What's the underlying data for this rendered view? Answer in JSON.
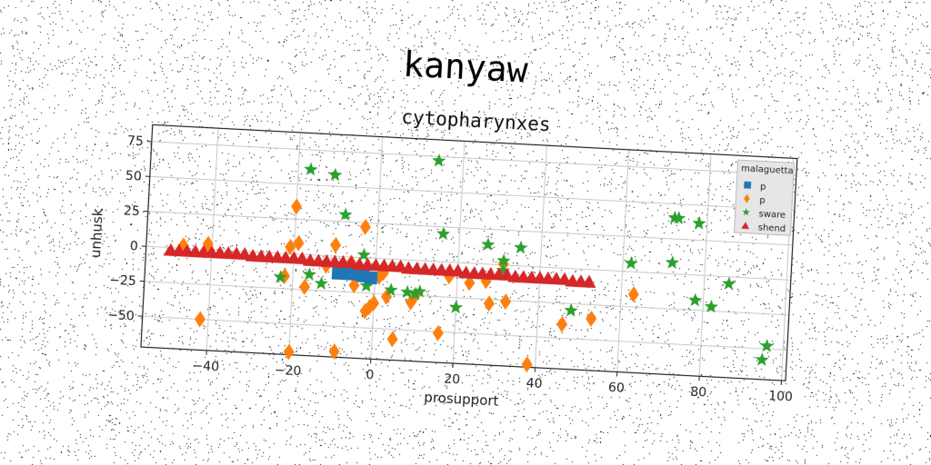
{
  "figure": {
    "title": "kanyaw"
  },
  "chart_data": {
    "type": "scatter",
    "title": "cytopharynxes",
    "xlabel": "prosupport",
    "ylabel": "unhusk",
    "xlim": [
      -56,
      101
    ],
    "ylim": [
      -72,
      87
    ],
    "x_ticks": [
      -40,
      -20,
      0,
      20,
      40,
      60,
      80,
      100
    ],
    "y_ticks": [
      -50,
      -25,
      0,
      25,
      50,
      75
    ],
    "x_tick_labels": [
      "−40",
      "−20",
      "0",
      "20",
      "40",
      "60",
      "80",
      "100"
    ],
    "y_tick_labels": [
      "−50",
      "−25",
      "0",
      "25",
      "50",
      "75"
    ],
    "grid": true,
    "legend": {
      "title": "malaguetta",
      "placement": "top-right"
    },
    "series": [
      {
        "name": "p",
        "marker": "square",
        "color": "#1f77b4",
        "points": [
          [
            -9,
            -12
          ],
          [
            -6,
            -12
          ],
          [
            -3,
            -13
          ],
          [
            -1,
            -14
          ]
        ]
      },
      {
        "name": "p",
        "marker": "diamond",
        "color": "#ff7f0e",
        "points": [
          [
            -47,
            2
          ],
          [
            -41,
            4
          ],
          [
            -42,
            -50
          ],
          [
            -22,
            -16
          ],
          [
            -21,
            5
          ],
          [
            -20,
            34
          ],
          [
            -19,
            8
          ],
          [
            -17,
            -23
          ],
          [
            -20,
            -70
          ],
          [
            -12,
            -7
          ],
          [
            -10,
            8
          ],
          [
            -9,
            -68
          ],
          [
            -6,
            -4
          ],
          [
            -5,
            -20
          ],
          [
            -3,
            22
          ],
          [
            -2,
            -38
          ],
          [
            -1,
            -35
          ],
          [
            0,
            -32
          ],
          [
            1,
            -13
          ],
          [
            2,
            -10
          ],
          [
            3,
            -27
          ],
          [
            5,
            -57
          ],
          [
            9,
            -30
          ],
          [
            10,
            -25
          ],
          [
            16,
            -51
          ],
          [
            18,
            -10
          ],
          [
            23,
            -14
          ],
          [
            27,
            -12
          ],
          [
            28,
            -28
          ],
          [
            31,
            1
          ],
          [
            32,
            -26
          ],
          [
            38,
            -70
          ],
          [
            46,
            -40
          ],
          [
            53,
            -35
          ],
          [
            63,
            -16
          ]
        ]
      },
      {
        "name": "sware",
        "marker": "star",
        "color": "#2ca02c",
        "points": [
          [
            -23,
            -17
          ],
          [
            -17,
            61
          ],
          [
            -16,
            -14
          ],
          [
            -13,
            -20
          ],
          [
            -11,
            58
          ],
          [
            -8,
            30
          ],
          [
            -3,
            2
          ],
          [
            -2,
            -20
          ],
          [
            4,
            -22
          ],
          [
            8,
            -23
          ],
          [
            10,
            -24
          ],
          [
            11,
            -22
          ],
          [
            14,
            72
          ],
          [
            16,
            20
          ],
          [
            20,
            -32
          ],
          [
            27,
            14
          ],
          [
            31,
            -4
          ],
          [
            31,
            3
          ],
          [
            35,
            13
          ],
          [
            48,
            -30
          ],
          [
            62,
            6
          ],
          [
            72,
            8
          ],
          [
            72,
            40
          ],
          [
            73,
            40
          ],
          [
            78,
            37
          ],
          [
            78,
            -18
          ],
          [
            82,
            -22
          ],
          [
            86,
            -5
          ],
          [
            95,
            -58
          ],
          [
            96,
            -48
          ]
        ]
      },
      {
        "name": "shend",
        "marker": "triangle",
        "color": "#d62728",
        "points": [
          [
            -50,
            -2
          ],
          [
            -48,
            -2
          ],
          [
            -46,
            -2
          ],
          [
            -44,
            -2
          ],
          [
            -42,
            -2
          ],
          [
            -40,
            -2
          ],
          [
            -38,
            -2
          ],
          [
            -36,
            -2
          ],
          [
            -34,
            -2
          ],
          [
            -32,
            -2
          ],
          [
            -30,
            -3
          ],
          [
            -28,
            -3
          ],
          [
            -26,
            -3
          ],
          [
            -24,
            -3
          ],
          [
            -22,
            -3
          ],
          [
            -20,
            -3
          ],
          [
            -18,
            -3
          ],
          [
            -16,
            -4
          ],
          [
            -14,
            -4
          ],
          [
            -12,
            -4
          ],
          [
            -10,
            -4
          ],
          [
            -8,
            -4
          ],
          [
            -6,
            -4
          ],
          [
            -4,
            -5
          ],
          [
            -2,
            -5
          ],
          [
            0,
            -5
          ],
          [
            2,
            -5
          ],
          [
            4,
            -5
          ],
          [
            6,
            -5
          ],
          [
            8,
            -6
          ],
          [
            10,
            -6
          ],
          [
            12,
            -6
          ],
          [
            14,
            -6
          ],
          [
            16,
            -6
          ],
          [
            18,
            -6
          ],
          [
            20,
            -6
          ],
          [
            22,
            -7
          ],
          [
            24,
            -7
          ],
          [
            26,
            -7
          ],
          [
            28,
            -7
          ],
          [
            30,
            -7
          ],
          [
            32,
            -7
          ],
          [
            34,
            -8
          ],
          [
            36,
            -8
          ],
          [
            38,
            -8
          ],
          [
            40,
            -8
          ],
          [
            42,
            -8
          ],
          [
            44,
            -8
          ],
          [
            46,
            -8
          ],
          [
            48,
            -9
          ],
          [
            50,
            -9
          ],
          [
            52,
            -9
          ]
        ]
      }
    ]
  }
}
